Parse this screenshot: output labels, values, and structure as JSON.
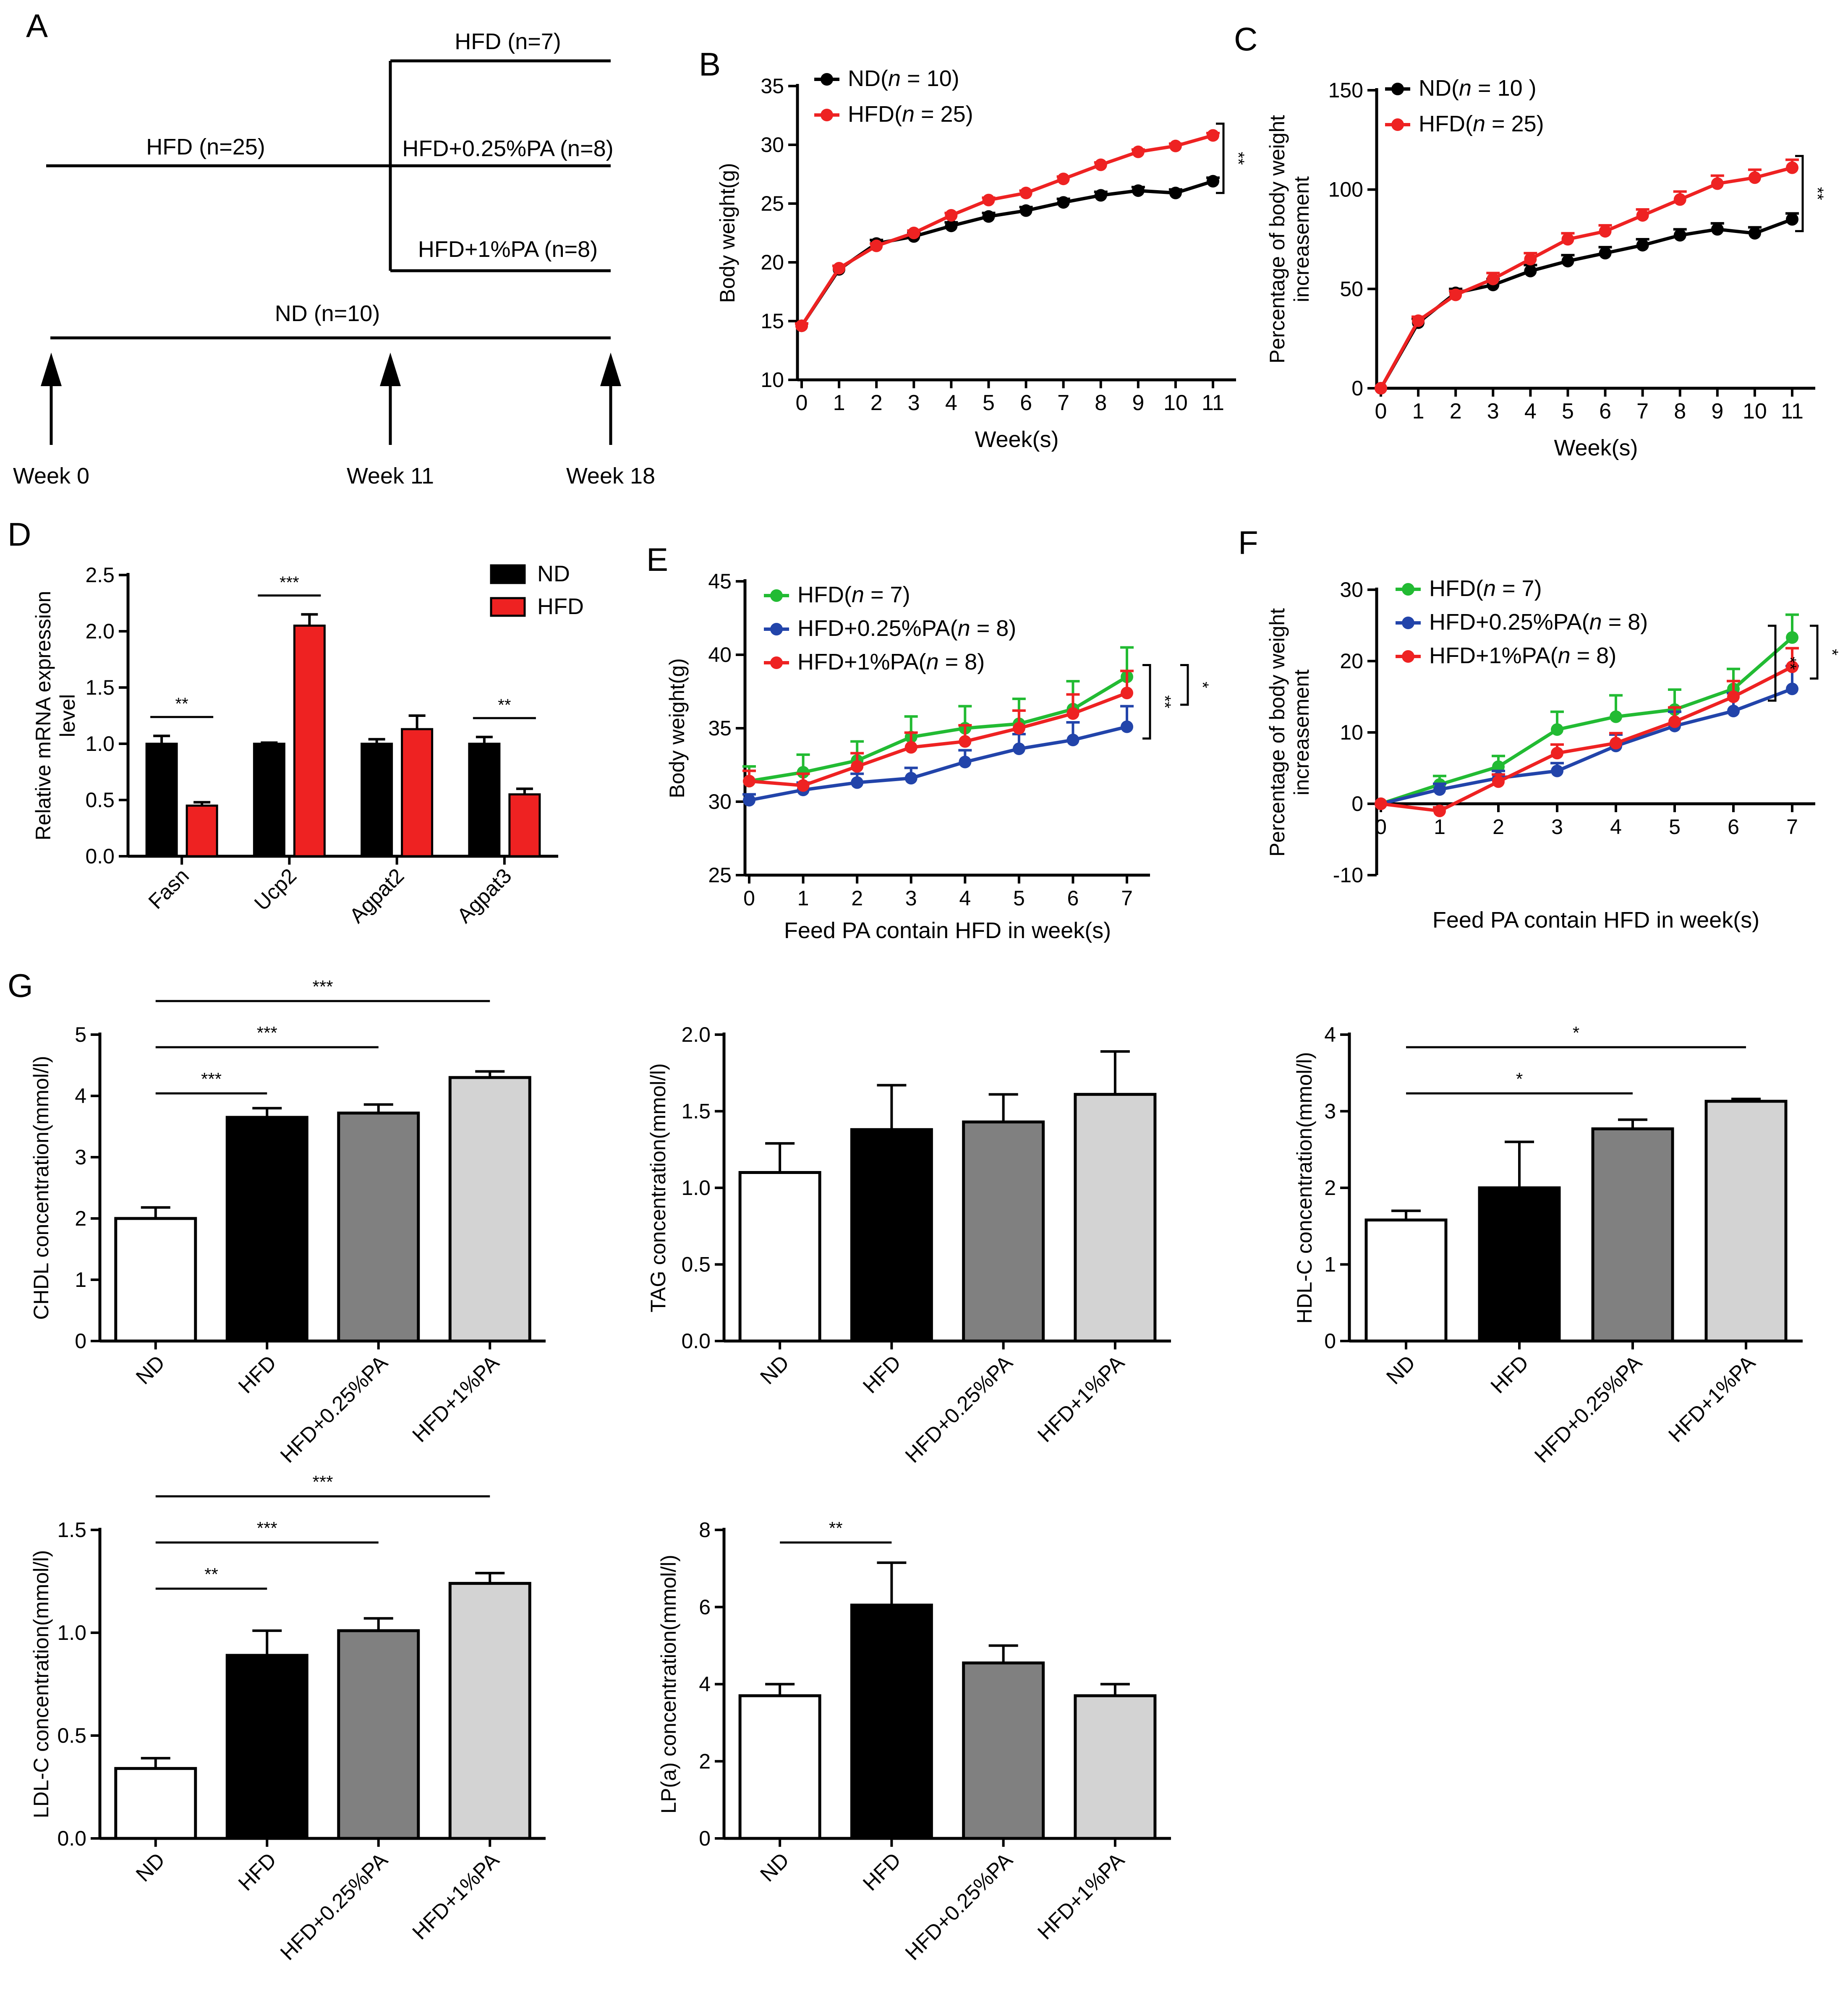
{
  "colors": {
    "nd": "#000000",
    "hfd": "#ee2222",
    "green": "#22bb33",
    "blue": "#2244aa",
    "bar_hfd": "#000000",
    "bar_pa025": "#808080",
    "bar_pa1": "#d3d3d3",
    "bar_nd": "#ffffff"
  },
  "panel_a": {
    "label": "A",
    "hfd_label": "HFD (n=25)",
    "nd_label": "ND (n=10)",
    "hfd7_label": "HFD (n=7)",
    "pa025_label": "HFD+0.25%PA (n=8)",
    "pa1_label": "HFD+1%PA (n=8)",
    "week0": "Week 0",
    "week11": "Week 11",
    "week18": "Week 18"
  },
  "chart_data": [
    {
      "id": "B",
      "panel_label": "B",
      "type": "line",
      "ylabel": "Body weight(g)",
      "xlabel": "Week(s)",
      "x": [
        0,
        1,
        2,
        3,
        4,
        5,
        6,
        7,
        8,
        9,
        10,
        11
      ],
      "ylim": [
        10,
        35
      ],
      "yticks": [
        10,
        15,
        20,
        25,
        30,
        35
      ],
      "series": [
        {
          "name": "ND(n = 10)",
          "legend": [
            "ND(",
            "n",
            " = 10)"
          ],
          "color": "#000000",
          "values": [
            14.6,
            19.4,
            21.6,
            22.2,
            23.1,
            23.9,
            24.4,
            25.1,
            25.7,
            26.1,
            25.9,
            26.9
          ],
          "err": [
            0.2,
            0.3,
            0.3,
            0.3,
            0.3,
            0.3,
            0.3,
            0.3,
            0.3,
            0.3,
            0.3,
            0.3
          ]
        },
        {
          "name": "HFD(n = 25)",
          "legend": [
            "HFD(",
            "n",
            " = 25)"
          ],
          "color": "#ee2222",
          "values": [
            14.6,
            19.5,
            21.4,
            22.5,
            24.0,
            25.3,
            25.9,
            27.1,
            28.3,
            29.4,
            29.9,
            30.8
          ],
          "err": [
            0.2,
            0.2,
            0.2,
            0.2,
            0.2,
            0.2,
            0.2,
            0.2,
            0.2,
            0.2,
            0.2,
            0.2
          ]
        }
      ],
      "significance": [
        {
          "label": "**"
        }
      ]
    },
    {
      "id": "C",
      "panel_label": "C",
      "type": "line",
      "ylabel": [
        "Percentage of body weight",
        "increasement"
      ],
      "xlabel": "Week(s)",
      "x": [
        0,
        1,
        2,
        3,
        4,
        5,
        6,
        7,
        8,
        9,
        10,
        11
      ],
      "ylim": [
        0,
        150
      ],
      "yticks": [
        0,
        50,
        100,
        150
      ],
      "series": [
        {
          "name": "ND(n = 10 )",
          "legend": [
            "ND(",
            "n",
            " = 10 )"
          ],
          "color": "#000000",
          "values": [
            0,
            33,
            48,
            52,
            59,
            64,
            68,
            72,
            77,
            80,
            78,
            85
          ],
          "err": [
            0,
            2,
            2,
            3,
            3,
            3,
            3,
            3,
            3,
            3,
            3,
            3
          ]
        },
        {
          "name": "HFD(n = 25)",
          "legend": [
            "HFD(",
            "n",
            " = 25)"
          ],
          "color": "#ee2222",
          "values": [
            0,
            34,
            47,
            55,
            65,
            75,
            79,
            87,
            95,
            103,
            106,
            111
          ],
          "err": [
            0,
            2,
            2,
            3,
            3,
            3,
            3,
            3,
            4,
            4,
            4,
            4
          ]
        }
      ],
      "significance": [
        {
          "label": "**"
        }
      ]
    },
    {
      "id": "D",
      "panel_label": "D",
      "type": "bar",
      "ylabel": [
        "Relative mRNA expression",
        "level"
      ],
      "xlabel": "",
      "categories": [
        "Fasn",
        "Ucp2",
        "Agpat2",
        "Agpat3"
      ],
      "ylim": [
        0,
        2.5
      ],
      "yticks": [
        "0.0",
        "0.5",
        "1.0",
        "1.5",
        "2.0",
        "2.5"
      ],
      "series": [
        {
          "name": "ND",
          "color": "#000000",
          "values": [
            1.0,
            1.0,
            1.0,
            1.0
          ],
          "err": [
            0.07,
            0.01,
            0.04,
            0.06
          ]
        },
        {
          "name": "HFD",
          "color": "#ee2222",
          "values": [
            0.45,
            2.05,
            1.13,
            0.55
          ],
          "err": [
            0.03,
            0.1,
            0.12,
            0.05
          ]
        }
      ],
      "significance": [
        {
          "category": 0,
          "label": "**"
        },
        {
          "category": 1,
          "label": "***"
        },
        {
          "category": 3,
          "label": "**"
        }
      ]
    },
    {
      "id": "E",
      "panel_label": "E",
      "type": "line",
      "ylabel": "Body weight(g)",
      "xlabel": "Feed PA contain HFD in week(s)",
      "x": [
        0,
        1,
        2,
        3,
        4,
        5,
        6,
        7
      ],
      "ylim": [
        25,
        45
      ],
      "yticks": [
        25,
        30,
        35,
        40,
        45
      ],
      "series": [
        {
          "name": "HFD(n = 7)",
          "legend": [
            "HFD(",
            "n",
            " = 7)"
          ],
          "color": "#22bb33",
          "values": [
            31.4,
            32.0,
            32.8,
            34.4,
            35.0,
            35.3,
            36.3,
            38.5
          ],
          "err": [
            1.0,
            1.2,
            1.3,
            1.4,
            1.5,
            1.7,
            1.9,
            2.0
          ]
        },
        {
          "name": "HFD+0.25%PA(n = 8)",
          "legend": [
            "HFD+0.25%PA(",
            "n",
            " = 8)"
          ],
          "color": "#2244aa",
          "values": [
            30.1,
            30.8,
            31.3,
            31.6,
            32.7,
            33.6,
            34.2,
            35.1
          ],
          "err": [
            0.4,
            0.5,
            0.6,
            0.7,
            0.8,
            1.0,
            1.2,
            1.4
          ]
        },
        {
          "name": "HFD+1%PA(n = 8)",
          "legend": [
            "HFD+1%PA(",
            "n",
            " = 8)"
          ],
          "color": "#ee2222",
          "values": [
            31.4,
            31.1,
            32.4,
            33.7,
            34.1,
            35.0,
            36.0,
            37.4
          ],
          "err": [
            0.7,
            0.8,
            0.9,
            1.0,
            1.1,
            1.2,
            1.3,
            1.5
          ]
        }
      ],
      "significance": [
        {
          "label": "**"
        },
        {
          "label": "*"
        }
      ]
    },
    {
      "id": "F",
      "panel_label": "F",
      "type": "line",
      "ylabel": [
        "Percentage of body weight",
        "increasement"
      ],
      "xlabel": "Feed PA contain HFD in week(s)",
      "x": [
        0,
        1,
        2,
        3,
        4,
        5,
        6,
        7
      ],
      "ylim": [
        -10,
        30
      ],
      "yticks": [
        -10,
        0,
        10,
        20,
        30
      ],
      "series": [
        {
          "name": "HFD(n = 7)",
          "legend": [
            "HFD(",
            "n",
            " = 7)"
          ],
          "color": "#22bb33",
          "values": [
            0,
            2.7,
            5.2,
            10.4,
            12.2,
            13.2,
            16.1,
            23.3
          ],
          "err": [
            0,
            1.2,
            1.5,
            2.5,
            3.0,
            2.8,
            2.8,
            3.2
          ]
        },
        {
          "name": "HFD+0.25%PA(n = 8)",
          "legend": [
            "HFD+0.25%PA(",
            "n",
            " = 8)"
          ],
          "color": "#2244aa",
          "values": [
            0,
            2.0,
            3.6,
            4.6,
            8.1,
            10.9,
            13.0,
            16.1
          ],
          "err": [
            0,
            0.8,
            1.0,
            1.1,
            1.6,
            2.0,
            2.5,
            3.2
          ]
        },
        {
          "name": "HFD+1%PA(n = 8)",
          "legend": [
            "HFD+1%PA(",
            "n",
            " = 8)"
          ],
          "color": "#ee2222",
          "values": [
            0,
            -1.0,
            3.1,
            7.1,
            8.5,
            11.5,
            15.0,
            19.2
          ],
          "err": [
            0,
            0.5,
            1.0,
            1.2,
            1.4,
            2.0,
            2.2,
            2.6
          ]
        }
      ],
      "significance": [
        {
          "label": "**"
        },
        {
          "label": "*"
        }
      ]
    },
    {
      "id": "G1",
      "panel_label": "G",
      "type": "bar",
      "ylabel": "CHDL concentration(mmol/l)",
      "categories": [
        "ND",
        "HFD",
        "HFD+0.25%PA",
        "HFD+1%PA"
      ],
      "ylim": [
        0,
        5
      ],
      "yticks": [
        "0",
        "1",
        "2",
        "3",
        "4",
        "5"
      ],
      "values": [
        2.0,
        3.65,
        3.72,
        4.3
      ],
      "err": [
        0.18,
        0.15,
        0.14,
        0.1
      ],
      "significance": [
        {
          "from": 0,
          "to": 1,
          "label": "***"
        },
        {
          "from": 0,
          "to": 2,
          "label": "***"
        },
        {
          "from": 0,
          "to": 3,
          "label": "***"
        }
      ]
    },
    {
      "id": "G2",
      "panel_label": "",
      "type": "bar",
      "ylabel": "TAG concentration(mmol/l)",
      "categories": [
        "ND",
        "HFD",
        "HFD+0.25%PA",
        "HFD+1%PA"
      ],
      "ylim": [
        0,
        2.0
      ],
      "yticks": [
        "0.0",
        "0.5",
        "1.0",
        "1.5",
        "2.0"
      ],
      "values": [
        1.1,
        1.38,
        1.43,
        1.61
      ],
      "err": [
        0.19,
        0.29,
        0.18,
        0.28
      ],
      "significance": []
    },
    {
      "id": "G3",
      "panel_label": "",
      "type": "bar",
      "ylabel": "HDL-C concentration(mmol/l)",
      "categories": [
        "ND",
        "HFD",
        "HFD+0.25%PA",
        "HFD+1%PA"
      ],
      "ylim": [
        0,
        4
      ],
      "yticks": [
        "0",
        "1",
        "2",
        "3",
        "4"
      ],
      "values": [
        1.58,
        2.0,
        2.77,
        3.13
      ],
      "err": [
        0.12,
        0.6,
        0.12,
        0.03
      ],
      "significance": [
        {
          "from": 0,
          "to": 2,
          "label": "*"
        },
        {
          "from": 0,
          "to": 3,
          "label": "*"
        }
      ]
    },
    {
      "id": "G4",
      "panel_label": "",
      "type": "bar",
      "ylabel": "LDL-C concentration(mmol/l)",
      "categories": [
        "ND",
        "HFD",
        "HFD+0.25%PA",
        "HFD+1%PA"
      ],
      "ylim": [
        0,
        1.5
      ],
      "yticks": [
        "0.0",
        "0.5",
        "1.0",
        "1.5"
      ],
      "values": [
        0.34,
        0.89,
        1.01,
        1.24
      ],
      "err": [
        0.05,
        0.12,
        0.06,
        0.05
      ],
      "significance": [
        {
          "from": 0,
          "to": 1,
          "label": "**"
        },
        {
          "from": 0,
          "to": 2,
          "label": "***"
        },
        {
          "from": 0,
          "to": 3,
          "label": "***"
        }
      ]
    },
    {
      "id": "G5",
      "panel_label": "",
      "type": "bar",
      "ylabel": "LP(a) concentration(mmol/l)",
      "categories": [
        "ND",
        "HFD",
        "HFD+0.25%PA",
        "HFD+1%PA"
      ],
      "ylim": [
        0,
        8
      ],
      "yticks": [
        "0",
        "2",
        "4",
        "6",
        "8"
      ],
      "values": [
        3.7,
        6.05,
        4.55,
        3.7
      ],
      "err": [
        0.3,
        1.1,
        0.45,
        0.3
      ],
      "significance": [
        {
          "from": 0,
          "to": 1,
          "label": "**"
        }
      ]
    }
  ]
}
